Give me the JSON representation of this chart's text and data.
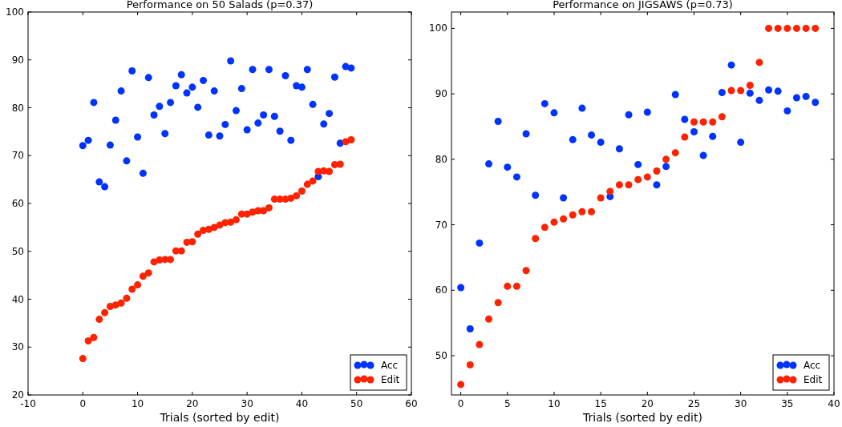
{
  "chart_data": [
    {
      "type": "scatter",
      "title": "Performance on 50 Salads (p=0.37)",
      "xlabel": "Trials (sorted by edit)",
      "x": [
        0,
        1,
        2,
        3,
        4,
        5,
        6,
        7,
        8,
        9,
        10,
        11,
        12,
        13,
        14,
        15,
        16,
        17,
        18,
        19,
        20,
        21,
        22,
        23,
        24,
        25,
        26,
        27,
        28,
        29,
        30,
        31,
        32,
        33,
        34,
        35,
        36,
        37,
        38,
        39,
        40,
        41,
        42,
        43,
        44,
        45,
        46,
        47,
        48,
        49
      ],
      "xlim": [
        -10,
        60
      ],
      "xticks": [
        -10,
        0,
        10,
        20,
        30,
        40,
        50,
        60
      ],
      "ylim": [
        20,
        100
      ],
      "yticks": [
        20,
        30,
        40,
        50,
        60,
        70,
        80,
        90,
        100
      ],
      "marker": "circle",
      "grid": false,
      "legend": "bottom right",
      "series": [
        {
          "name": "Acc",
          "color": "#0033ff",
          "values": [
            72.1,
            73.2,
            81.1,
            64.5,
            63.5,
            72.2,
            77.4,
            83.5,
            68.9,
            87.7,
            73.9,
            66.3,
            86.3,
            78.5,
            80.3,
            74.6,
            81.1,
            84.6,
            86.9,
            83.1,
            84.3,
            80.1,
            85.7,
            74.3,
            83.5,
            74.1,
            76.5,
            89.8,
            79.4,
            84.0,
            75.4,
            88.0,
            76.8,
            78.5,
            88.0,
            78.2,
            75.1,
            86.7,
            73.2,
            84.6,
            84.3,
            88.0,
            80.7,
            65.6,
            76.6,
            78.8,
            86.4,
            72.6,
            88.6,
            88.3
          ]
        },
        {
          "name": "Edit",
          "color": "#ff2200",
          "values": [
            27.6,
            31.3,
            32.0,
            35.8,
            37.2,
            38.5,
            38.8,
            39.2,
            40.2,
            42.1,
            43.0,
            44.8,
            45.5,
            47.8,
            48.2,
            48.3,
            48.3,
            50.1,
            50.1,
            51.9,
            52.0,
            53.6,
            54.4,
            54.6,
            55.0,
            55.5,
            56.0,
            56.1,
            56.6,
            57.8,
            57.8,
            58.2,
            58.5,
            58.5,
            59.1,
            60.9,
            60.9,
            60.9,
            61.1,
            61.6,
            62.6,
            64.0,
            64.7,
            66.7,
            66.8,
            66.7,
            68.1,
            68.2,
            72.9,
            73.3
          ]
        }
      ]
    },
    {
      "type": "scatter",
      "title": "Performance on JIGSAWS (p=0.73)",
      "xlabel": "Trials (sorted by edit)",
      "x": [
        0,
        1,
        2,
        3,
        4,
        5,
        6,
        7,
        8,
        9,
        10,
        11,
        12,
        13,
        14,
        15,
        16,
        17,
        18,
        19,
        20,
        21,
        22,
        23,
        24,
        25,
        26,
        27,
        28,
        29,
        30,
        31,
        32,
        33,
        34,
        35,
        36,
        37,
        38
      ],
      "xlim": [
        -1,
        40
      ],
      "xticks": [
        0,
        5,
        10,
        15,
        20,
        25,
        30,
        35,
        40
      ],
      "ylim": [
        44,
        102.5
      ],
      "yticks": [
        50,
        60,
        70,
        80,
        90,
        100
      ],
      "marker": "circle",
      "grid": false,
      "legend": "bottom right",
      "series": [
        {
          "name": "Acc",
          "color": "#0033ff",
          "values": [
            60.4,
            54.1,
            67.2,
            79.3,
            85.8,
            78.8,
            77.3,
            83.9,
            74.5,
            88.5,
            87.1,
            74.1,
            83.0,
            87.8,
            83.7,
            82.6,
            74.3,
            81.6,
            86.8,
            79.2,
            87.2,
            76.1,
            78.9,
            89.9,
            86.1,
            84.2,
            80.6,
            83.5,
            90.2,
            94.4,
            82.6,
            90.1,
            89.0,
            90.6,
            90.4,
            87.4,
            89.4,
            89.6,
            88.7
          ]
        },
        {
          "name": "Edit",
          "color": "#ff2200",
          "values": [
            45.6,
            48.6,
            51.7,
            55.6,
            58.1,
            60.6,
            60.6,
            63.0,
            67.9,
            69.6,
            70.4,
            70.9,
            71.5,
            72.0,
            72.0,
            74.1,
            75.1,
            76.1,
            76.1,
            76.9,
            77.3,
            78.2,
            80.0,
            81.0,
            83.4,
            85.7,
            85.7,
            85.7,
            86.5,
            90.5,
            90.5,
            91.3,
            94.8,
            100,
            100,
            100,
            100,
            100,
            100
          ]
        }
      ]
    }
  ]
}
